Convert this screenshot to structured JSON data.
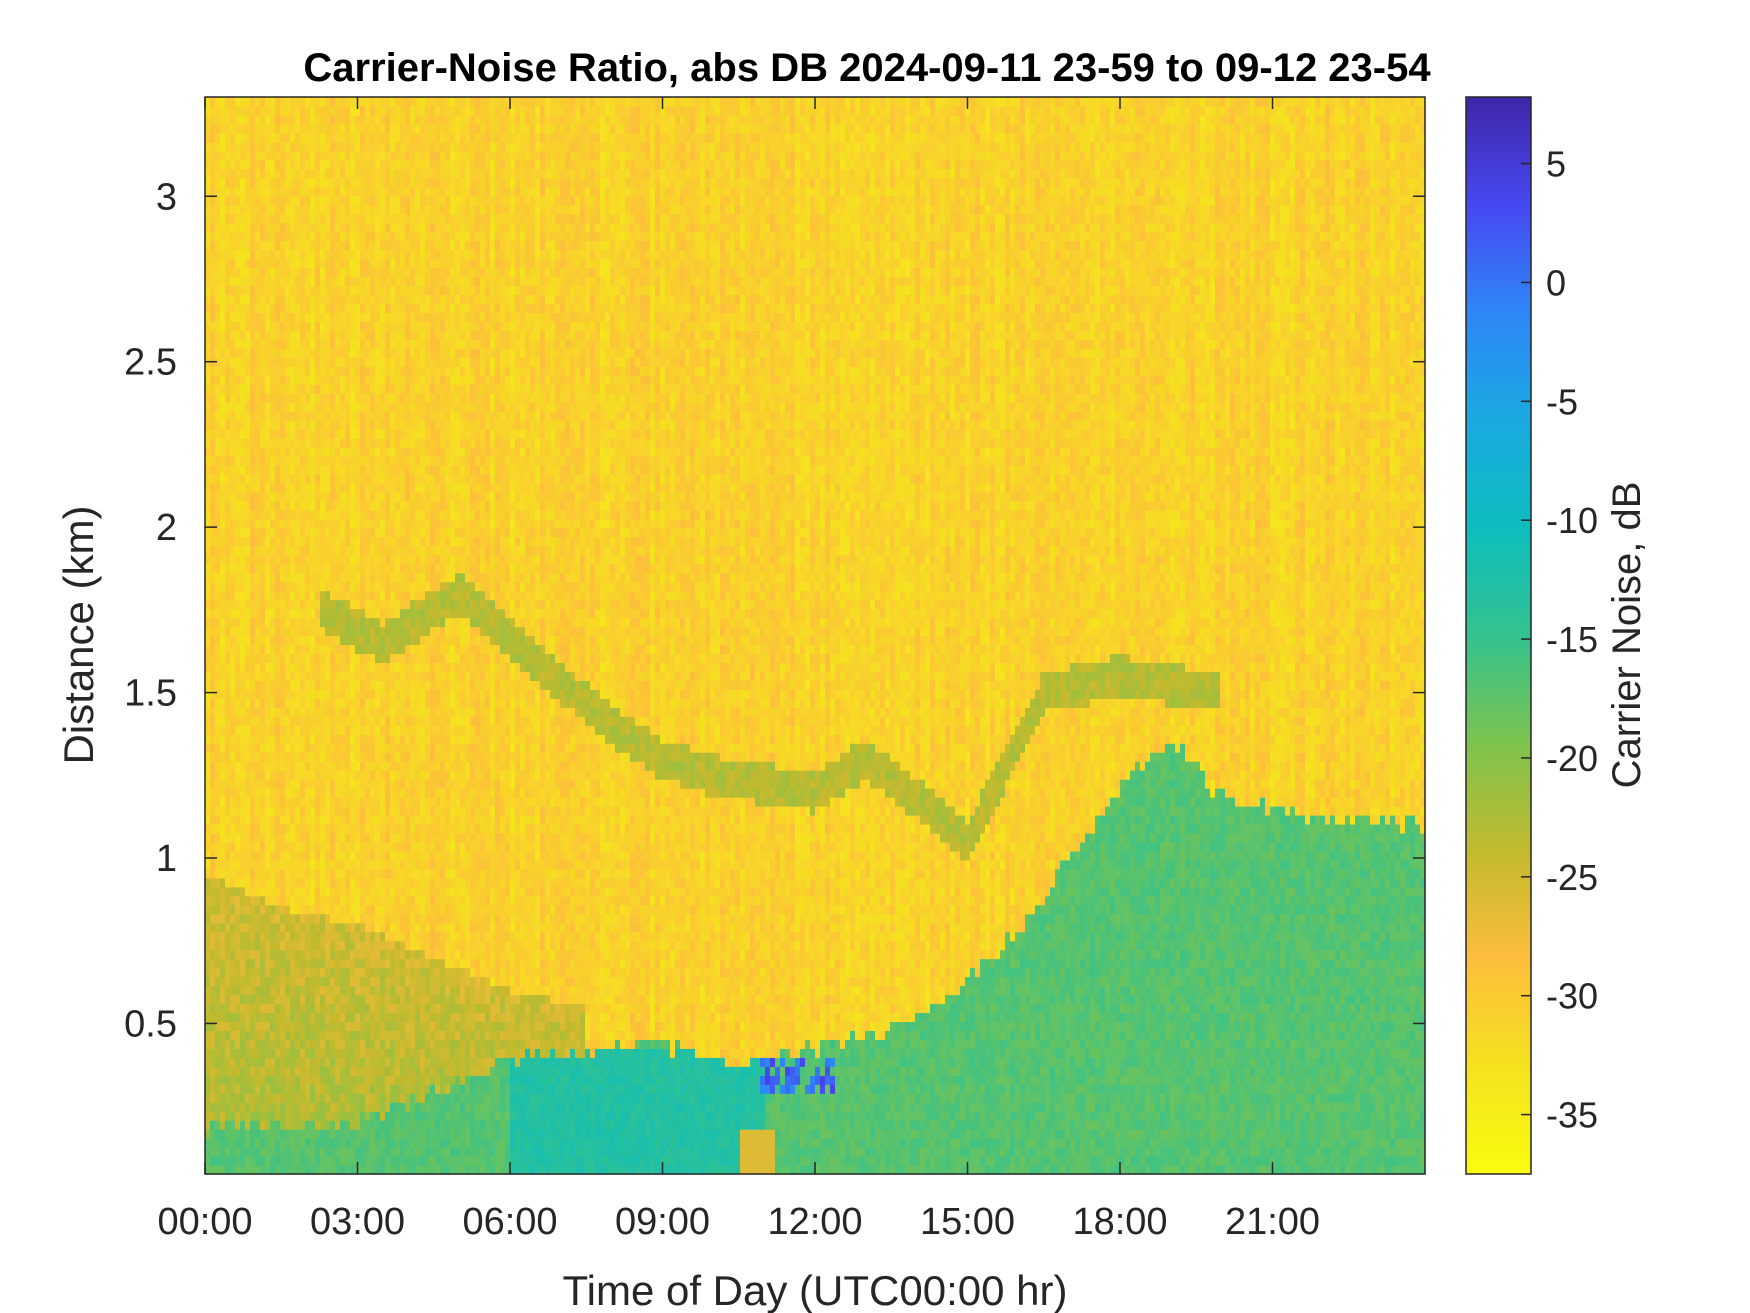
{
  "chart_data": {
    "type": "heatmap",
    "title": "Carrier-Noise Ratio, abs DB 2024-09-11 23-59 to 09-12 23-54",
    "xlabel": "Time of Day (UTC00:00 hr)",
    "ylabel": "Distance (km)",
    "colorbar_label": "Carrier Noise, dB",
    "xlim_hours": [
      0,
      24
    ],
    "ylim_km": [
      0.045,
      3.3
    ],
    "clim_db": [
      -37.5,
      7.8
    ],
    "x_ticks": [
      {
        "hour": 0,
        "label": "00:00"
      },
      {
        "hour": 3,
        "label": "03:00"
      },
      {
        "hour": 6,
        "label": "06:00"
      },
      {
        "hour": 9,
        "label": "09:00"
      },
      {
        "hour": 12,
        "label": "12:00"
      },
      {
        "hour": 15,
        "label": "15:00"
      },
      {
        "hour": 18,
        "label": "18:00"
      },
      {
        "hour": 21,
        "label": "21:00"
      }
    ],
    "y_ticks": [
      {
        "km": 0.5,
        "label": "0.5"
      },
      {
        "km": 1,
        "label": "1"
      },
      {
        "km": 1.5,
        "label": "1.5"
      },
      {
        "km": 2,
        "label": "2"
      },
      {
        "km": 2.5,
        "label": "2.5"
      },
      {
        "km": 3,
        "label": "3"
      }
    ],
    "colorbar_ticks": [
      {
        "db": 5,
        "label": "5"
      },
      {
        "db": 0,
        "label": "0"
      },
      {
        "db": -5,
        "label": "-5"
      },
      {
        "db": -10,
        "label": "-10"
      },
      {
        "db": -15,
        "label": "-15"
      },
      {
        "db": -20,
        "label": "-20"
      },
      {
        "db": -25,
        "label": "-25"
      },
      {
        "db": -30,
        "label": "-30"
      },
      {
        "db": -35,
        "label": "-35"
      }
    ],
    "colormap": "parula",
    "colormap_stops": [
      "#3e26a8",
      "#4748f1",
      "#2e87f7",
      "#1aa9e1",
      "#0dbdbe",
      "#33c28f",
      "#7dc34e",
      "#c3ba2e",
      "#fdbd3c",
      "#f5e21f",
      "#f9fb0e"
    ],
    "background_db": -31,
    "features": [
      {
        "name": "surface boundary layer",
        "db": -17,
        "boundary_km": [
          [
            0,
            0.18
          ],
          [
            3,
            0.2
          ],
          [
            6,
            0.4
          ],
          [
            9,
            0.44
          ],
          [
            10.5,
            0.38
          ],
          [
            12,
            0.42
          ],
          [
            13.5,
            0.48
          ],
          [
            14.5,
            0.55
          ],
          [
            16,
            0.78
          ],
          [
            17,
            1.0
          ],
          [
            18,
            1.22
          ],
          [
            19,
            1.35
          ],
          [
            20,
            1.18
          ],
          [
            21,
            1.15
          ],
          [
            22,
            1.12
          ],
          [
            24,
            1.1
          ]
        ]
      },
      {
        "name": "near-surface enhancement",
        "db": -22,
        "boundary_km": [
          [
            0,
            0.95
          ],
          [
            1.5,
            0.85
          ],
          [
            3,
            0.8
          ],
          [
            4.5,
            0.7
          ],
          [
            6,
            0.6
          ],
          [
            7.5,
            0.55
          ]
        ]
      },
      {
        "name": "elevated aerosol layer",
        "db": -23,
        "track_km": [
          [
            2.3,
            1.75
          ],
          [
            3.5,
            1.65
          ],
          [
            5,
            1.8
          ],
          [
            6.5,
            1.6
          ],
          [
            8,
            1.4
          ],
          [
            9,
            1.3
          ],
          [
            10,
            1.25
          ],
          [
            12,
            1.2
          ],
          [
            13,
            1.3
          ],
          [
            14,
            1.18
          ],
          [
            15,
            1.05
          ],
          [
            16.5,
            1.5
          ],
          [
            18,
            1.55
          ],
          [
            20,
            1.5
          ]
        ]
      },
      {
        "name": "strong return patch",
        "db": 4,
        "hours": [
          10.9,
          12.4
        ],
        "km": [
          0.28,
          0.4
        ]
      }
    ]
  }
}
